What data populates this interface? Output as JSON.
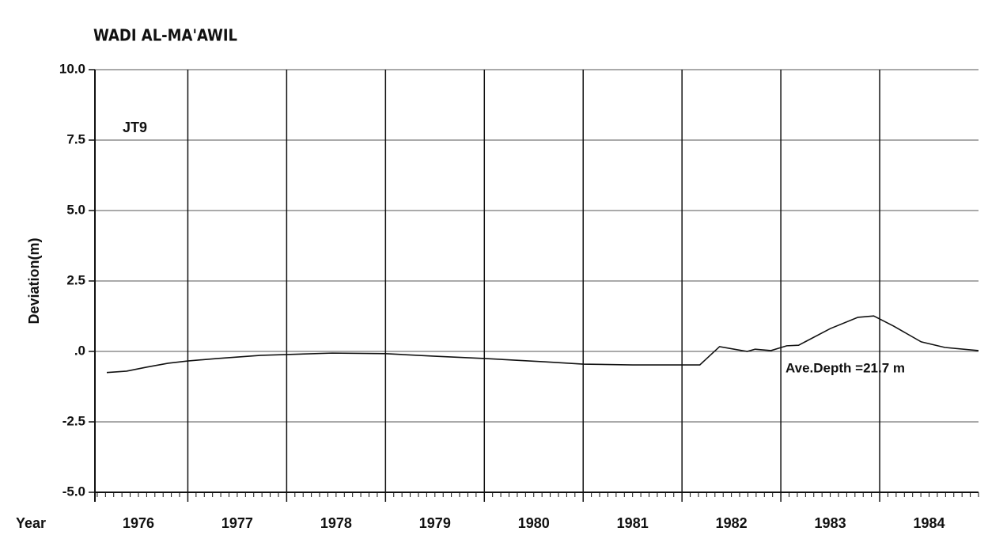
{
  "chart_data": {
    "type": "line",
    "title": "WADI AL-MA'AWIL",
    "ylabel": "Deviation(m)",
    "xlabel": "Year",
    "annotations": [
      "JT9",
      "Ave.Depth =21.7 m"
    ],
    "x": [
      1976.18,
      1976.38,
      1976.58,
      1976.8,
      1977.0,
      1977.3,
      1977.74,
      1978.0,
      1978.46,
      1979.0,
      1979.5,
      1980.0,
      1980.62,
      1981.0,
      1981.5,
      1982.18,
      1982.38,
      1982.66,
      1982.74,
      1982.9,
      1983.06,
      1983.18,
      1983.5,
      1983.78,
      1983.94,
      1984.14,
      1984.42,
      1984.66,
      1985.0
    ],
    "series": [
      {
        "name": "JT9",
        "color": "#111111",
        "values": [
          -0.75,
          -0.7,
          -0.56,
          -0.42,
          -0.34,
          -0.25,
          -0.14,
          -0.11,
          -0.06,
          -0.08,
          -0.17,
          -0.25,
          -0.37,
          -0.45,
          -0.48,
          -0.48,
          0.17,
          0,
          0.08,
          0.03,
          0.2,
          0.22,
          0.81,
          1.21,
          1.26,
          0.9,
          0.34,
          0.14,
          0.03
        ]
      }
    ],
    "xlim": [
      1976.06,
      1985
    ],
    "xticks": [
      {
        "value": 1976.5,
        "label": "1976"
      },
      {
        "value": 1977.5,
        "label": "1977"
      },
      {
        "value": 1978.5,
        "label": "1978"
      },
      {
        "value": 1979.5,
        "label": "1979"
      },
      {
        "value": 1980.5,
        "label": "1980"
      },
      {
        "value": 1981.5,
        "label": "1981"
      },
      {
        "value": 1982.5,
        "label": "1982"
      },
      {
        "value": 1983.5,
        "label": "1983"
      },
      {
        "value": 1984.5,
        "label": "1984"
      }
    ],
    "ylim": [
      -5,
      10
    ],
    "yticks": [
      {
        "value": 10,
        "label": "10.0"
      },
      7.5,
      {
        "value": 5,
        "label": "5.0"
      },
      2.5,
      {
        "value": 0,
        "label": ".0"
      },
      -2.5,
      {
        "value": -5,
        "label": "-5.0"
      }
    ],
    "grid": true
  }
}
